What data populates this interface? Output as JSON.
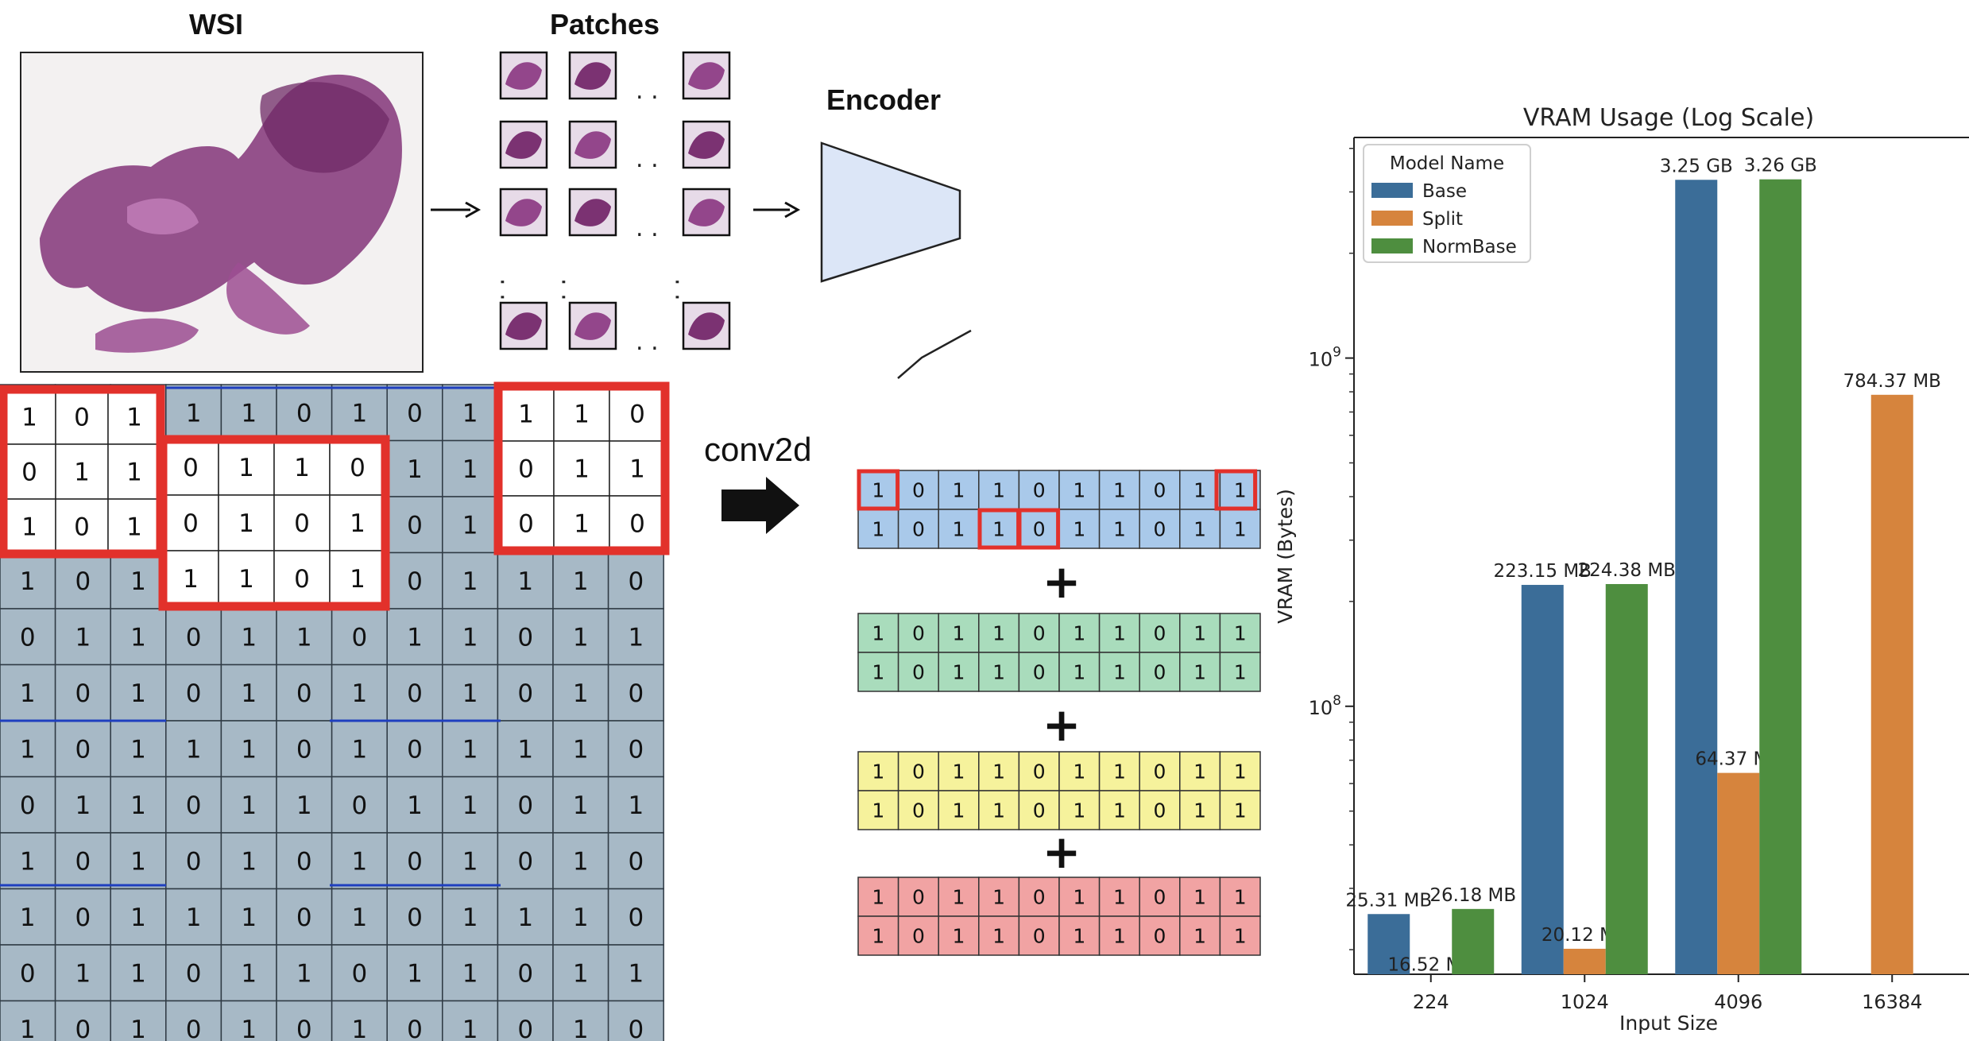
{
  "diagram": {
    "wsi_title": "WSI",
    "patches_title": "Patches",
    "encoder_title": "Encoder",
    "conv_label": "conv2d",
    "plus": "+",
    "dots": ". .",
    "grid": [
      [
        "1",
        "0",
        "1",
        "1",
        "1",
        "0",
        "1",
        "0",
        "1",
        "1",
        "1",
        "0"
      ],
      [
        "0",
        "1",
        "1",
        "0",
        "1",
        "1",
        "0",
        "1",
        "1",
        "0",
        "1",
        "1"
      ],
      [
        "1",
        "0",
        "1",
        "0",
        "1",
        "0",
        "1",
        "0",
        "1",
        "0",
        "1",
        "0"
      ],
      [
        "1",
        "0",
        "1",
        "1",
        "1",
        "0",
        "1",
        "0",
        "1",
        "1",
        "1",
        "0"
      ],
      [
        "0",
        "1",
        "1",
        "0",
        "1",
        "1",
        "0",
        "1",
        "1",
        "0",
        "1",
        "1"
      ],
      [
        "1",
        "0",
        "1",
        "0",
        "1",
        "0",
        "1",
        "0",
        "1",
        "0",
        "1",
        "0"
      ],
      [
        "1",
        "0",
        "1",
        "1",
        "1",
        "0",
        "1",
        "0",
        "1",
        "1",
        "1",
        "0"
      ],
      [
        "0",
        "1",
        "1",
        "0",
        "1",
        "1",
        "0",
        "1",
        "1",
        "0",
        "1",
        "1"
      ],
      [
        "1",
        "0",
        "1",
        "0",
        "1",
        "0",
        "1",
        "0",
        "1",
        "0",
        "1",
        "0"
      ],
      [
        "1",
        "0",
        "1",
        "1",
        "1",
        "0",
        "1",
        "0",
        "1",
        "1",
        "1",
        "0"
      ],
      [
        "0",
        "1",
        "1",
        "0",
        "1",
        "1",
        "0",
        "1",
        "1",
        "0",
        "1",
        "1"
      ],
      [
        "1",
        "0",
        "1",
        "0",
        "1",
        "0",
        "1",
        "0",
        "1",
        "0",
        "1",
        "0"
      ]
    ],
    "overlay_kernel": [
      [
        "0",
        "1",
        "1",
        "0"
      ],
      [
        "0",
        "1",
        "0",
        "1"
      ],
      [
        "1",
        "1",
        "0",
        "1"
      ]
    ],
    "feature_row": [
      "1",
      "0",
      "1",
      "1",
      "0",
      "1",
      "1",
      "0",
      "1",
      "1"
    ],
    "strip_colors": [
      "#a9c9ea",
      "#a9dcbc",
      "#f6f29c",
      "#f1a3a3"
    ],
    "grid_color": "#a7b9c6",
    "highlight_color": "#e2312b"
  },
  "chart_data": {
    "type": "bar",
    "title": "VRAM Usage (Log Scale)",
    "xlabel": "Input Size",
    "ylabel": "VRAM (Bytes)",
    "yscale": "log",
    "ylim": [
      17000000,
      4300000000
    ],
    "yticks": [
      {
        "value": 100000000,
        "base": "10",
        "exp": "8"
      },
      {
        "value": 1000000000,
        "base": "10",
        "exp": "9"
      }
    ],
    "categories": [
      "224",
      "1024",
      "4096",
      "16384"
    ],
    "legend": {
      "title": "Model Name",
      "position": "top-left"
    },
    "series": [
      {
        "name": "Base",
        "color": "#3b6d98",
        "values": [
          25310000,
          223150000,
          3250000000,
          null
        ],
        "labels": [
          "25.31 MB",
          "223.15 MB",
          "3.25 GB",
          ""
        ]
      },
      {
        "name": "Split",
        "color": "#d6843d",
        "values": [
          16520000,
          20120000,
          64370000,
          784370000
        ],
        "labels": [
          "16.52 MB",
          "20.12 MB",
          "64.37 MB",
          "784.37 MB"
        ]
      },
      {
        "name": "NormBase",
        "color": "#4e8e3f",
        "values": [
          26180000,
          224380000,
          3260000000,
          null
        ],
        "labels": [
          "26.18 MB",
          "224.38 MB",
          "3.26 GB",
          ""
        ]
      }
    ]
  }
}
